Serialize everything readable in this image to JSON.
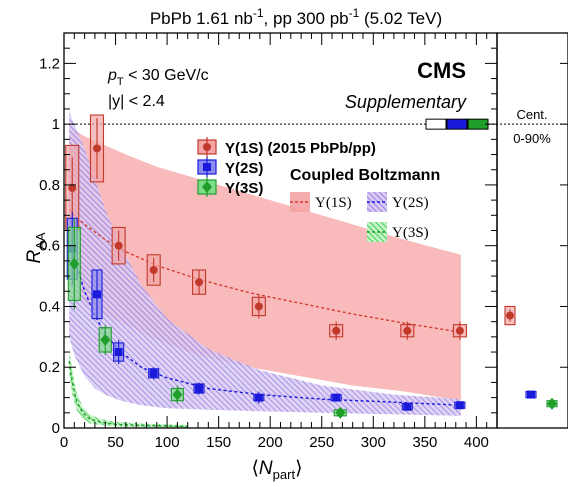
{
  "figure": {
    "top_title_main": "PbPb 1.61 nb",
    "top_title_sup1": "-1",
    "top_title_mid": ", pp 300 pb",
    "top_title_sup2": "-1",
    "top_title_end": " (5.02 TeV)",
    "cms_label": "CMS",
    "cms_sublabel": "Supplementary",
    "cut_pt_prefix": "p",
    "cut_pt_sub": "T",
    "cut_pt_text": " < 30 GeV/c",
    "cut_y": "|y| < 2.4",
    "ylabel_main": "R",
    "ylabel_sub": "AA",
    "xlabel_main": "N",
    "xlabel_sub": "part",
    "xlabel_left": "⟨",
    "xlabel_right": "⟩",
    "cent_title": "Cent.",
    "cent_range": "0-90%",
    "legend_data_title_1s": "Υ(1S) (2015 PbPb/pp)",
    "legend_data_title_2s": "Υ(2S)",
    "legend_data_title_3s": "Υ(3S)",
    "legend_model_title": "Coupled Boltzmann",
    "legend_model_1s": "Υ(1S)",
    "legend_model_2s": "Υ(2S)",
    "legend_model_3s": "Υ(3S)"
  },
  "colors": {
    "ups1s": "#c0392b",
    "ups1s_fill": "#f4a6a6",
    "ups1s_band": "#f5a3a3",
    "ups2s": "#1a1adb",
    "ups2s_fill": "#8c8cf0",
    "ups2s_band": "#a98de0",
    "ups3s": "#1f9e2a",
    "ups3s_fill": "#7fdc8a",
    "ups3s_band": "#3fd04a"
  },
  "chart_data": {
    "type": "scatter",
    "xlim": [
      0,
      420
    ],
    "ylim": [
      0,
      1.3
    ],
    "x_ticks": [
      0,
      50,
      100,
      150,
      200,
      250,
      300,
      350,
      400
    ],
    "y_ticks": [
      0,
      0.2,
      0.4,
      0.6,
      0.8,
      1,
      1.2
    ],
    "reference_line_y": 1,
    "series": [
      {
        "name": "Υ(1S) (2015 PbPb/pp)",
        "points": [
          {
            "x": 8,
            "y": 0.79,
            "err": 0.1,
            "sys": 0.14
          },
          {
            "x": 32,
            "y": 0.92,
            "err": 0.1,
            "sys": 0.11
          },
          {
            "x": 53,
            "y": 0.6,
            "err": 0.05,
            "sys": 0.06
          },
          {
            "x": 87,
            "y": 0.52,
            "err": 0.04,
            "sys": 0.05
          },
          {
            "x": 131,
            "y": 0.48,
            "err": 0.04,
            "sys": 0.04
          },
          {
            "x": 189,
            "y": 0.4,
            "err": 0.04,
            "sys": 0.03
          },
          {
            "x": 264,
            "y": 0.32,
            "err": 0.03,
            "sys": 0.02
          },
          {
            "x": 333,
            "y": 0.32,
            "err": 0.03,
            "sys": 0.02
          },
          {
            "x": 384,
            "y": 0.32,
            "err": 0.03,
            "sys": 0.02
          }
        ],
        "integrated": {
          "y": 0.37,
          "err": 0.02,
          "sys": 0.03
        }
      },
      {
        "name": "Υ(2S)",
        "points": [
          {
            "x": 8,
            "y": 0.59,
            "err": 0.12,
            "sys": 0.1
          },
          {
            "x": 32,
            "y": 0.44,
            "err": 0.08,
            "sys": 0.08
          },
          {
            "x": 53,
            "y": 0.25,
            "err": 0.04,
            "sys": 0.03
          },
          {
            "x": 87,
            "y": 0.18,
            "err": 0.02,
            "sys": 0.015
          },
          {
            "x": 131,
            "y": 0.13,
            "err": 0.02,
            "sys": 0.015
          },
          {
            "x": 189,
            "y": 0.1,
            "err": 0.02,
            "sys": 0.01
          },
          {
            "x": 264,
            "y": 0.1,
            "err": 0.01,
            "sys": 0.01
          },
          {
            "x": 333,
            "y": 0.07,
            "err": 0.01,
            "sys": 0.01
          },
          {
            "x": 384,
            "y": 0.075,
            "err": 0.01,
            "sys": 0.01
          }
        ],
        "integrated": {
          "y": 0.11,
          "err": 0.01,
          "sys": 0.01
        }
      },
      {
        "name": "Υ(3S)",
        "points": [
          {
            "x": 10,
            "y": 0.54,
            "err": 0.15,
            "sys": 0.12
          },
          {
            "x": 40,
            "y": 0.29,
            "err": 0.05,
            "sys": 0.04
          },
          {
            "x": 110,
            "y": 0.11,
            "err": 0.03,
            "sys": 0.02
          },
          {
            "x": 268,
            "y": 0.05,
            "err": 0.01,
            "sys": 0.01
          }
        ],
        "integrated": {
          "y": 0.08,
          "err": 0.01,
          "sys": 0.01
        }
      }
    ],
    "model_curves": [
      {
        "name": "Υ(1S)",
        "central": [
          [
            5,
            0.72
          ],
          [
            10,
            0.7
          ],
          [
            20,
            0.67
          ],
          [
            40,
            0.62
          ],
          [
            60,
            0.58
          ],
          [
            90,
            0.535
          ],
          [
            130,
            0.49
          ],
          [
            180,
            0.445
          ],
          [
            230,
            0.41
          ],
          [
            280,
            0.375
          ],
          [
            330,
            0.345
          ],
          [
            385,
            0.315
          ]
        ],
        "upper": [
          [
            5,
            0.99
          ],
          [
            10,
            0.98
          ],
          [
            20,
            0.96
          ],
          [
            40,
            0.93
          ],
          [
            60,
            0.9
          ],
          [
            90,
            0.86
          ],
          [
            130,
            0.82
          ],
          [
            180,
            0.77
          ],
          [
            230,
            0.72
          ],
          [
            280,
            0.67
          ],
          [
            330,
            0.62
          ],
          [
            385,
            0.57
          ]
        ],
        "lower": [
          [
            5,
            0.46
          ],
          [
            10,
            0.44
          ],
          [
            20,
            0.41
          ],
          [
            40,
            0.37
          ],
          [
            60,
            0.34
          ],
          [
            90,
            0.29
          ],
          [
            130,
            0.24
          ],
          [
            180,
            0.2
          ],
          [
            230,
            0.17
          ],
          [
            280,
            0.14
          ],
          [
            330,
            0.12
          ],
          [
            385,
            0.09
          ]
        ]
      },
      {
        "name": "Υ(2S)",
        "central": [
          [
            5,
            0.62
          ],
          [
            10,
            0.56
          ],
          [
            20,
            0.45
          ],
          [
            30,
            0.37
          ],
          [
            40,
            0.31
          ],
          [
            55,
            0.25
          ],
          [
            75,
            0.2
          ],
          [
            100,
            0.165
          ],
          [
            140,
            0.13
          ],
          [
            190,
            0.11
          ],
          [
            250,
            0.095
          ],
          [
            320,
            0.085
          ],
          [
            385,
            0.075
          ]
        ],
        "upper": [
          [
            5,
            1.04
          ],
          [
            10,
            1.0
          ],
          [
            20,
            0.92
          ],
          [
            30,
            0.82
          ],
          [
            40,
            0.72
          ],
          [
            55,
            0.6
          ],
          [
            75,
            0.47
          ],
          [
            100,
            0.36
          ],
          [
            140,
            0.26
          ],
          [
            190,
            0.19
          ],
          [
            250,
            0.14
          ],
          [
            320,
            0.11
          ],
          [
            385,
            0.095
          ]
        ],
        "lower": [
          [
            5,
            0.3
          ],
          [
            10,
            0.24
          ],
          [
            20,
            0.17
          ],
          [
            30,
            0.13
          ],
          [
            40,
            0.11
          ],
          [
            55,
            0.09
          ],
          [
            75,
            0.075
          ],
          [
            100,
            0.065
          ],
          [
            140,
            0.06
          ],
          [
            190,
            0.055
          ],
          [
            250,
            0.05
          ],
          [
            320,
            0.045
          ],
          [
            385,
            0.04
          ]
        ]
      },
      {
        "name": "Υ(3S)",
        "central": [
          [
            5,
            0.22
          ],
          [
            8,
            0.15
          ],
          [
            12,
            0.09
          ],
          [
            18,
            0.05
          ],
          [
            25,
            0.03
          ],
          [
            35,
            0.02
          ],
          [
            50,
            0.012
          ],
          [
            80,
            0.008
          ],
          [
            120,
            0.005
          ]
        ],
        "upper": [
          [
            5,
            0.26
          ],
          [
            8,
            0.19
          ],
          [
            12,
            0.12
          ],
          [
            18,
            0.07
          ],
          [
            25,
            0.045
          ],
          [
            35,
            0.03
          ],
          [
            50,
            0.02
          ],
          [
            80,
            0.014
          ],
          [
            120,
            0.01
          ]
        ],
        "lower": [
          [
            5,
            0.18
          ],
          [
            8,
            0.11
          ],
          [
            12,
            0.06
          ],
          [
            18,
            0.03
          ],
          [
            25,
            0.015
          ],
          [
            35,
            0.01
          ],
          [
            50,
            0.005
          ],
          [
            80,
            0.003
          ],
          [
            120,
            0.002
          ]
        ]
      }
    ]
  }
}
